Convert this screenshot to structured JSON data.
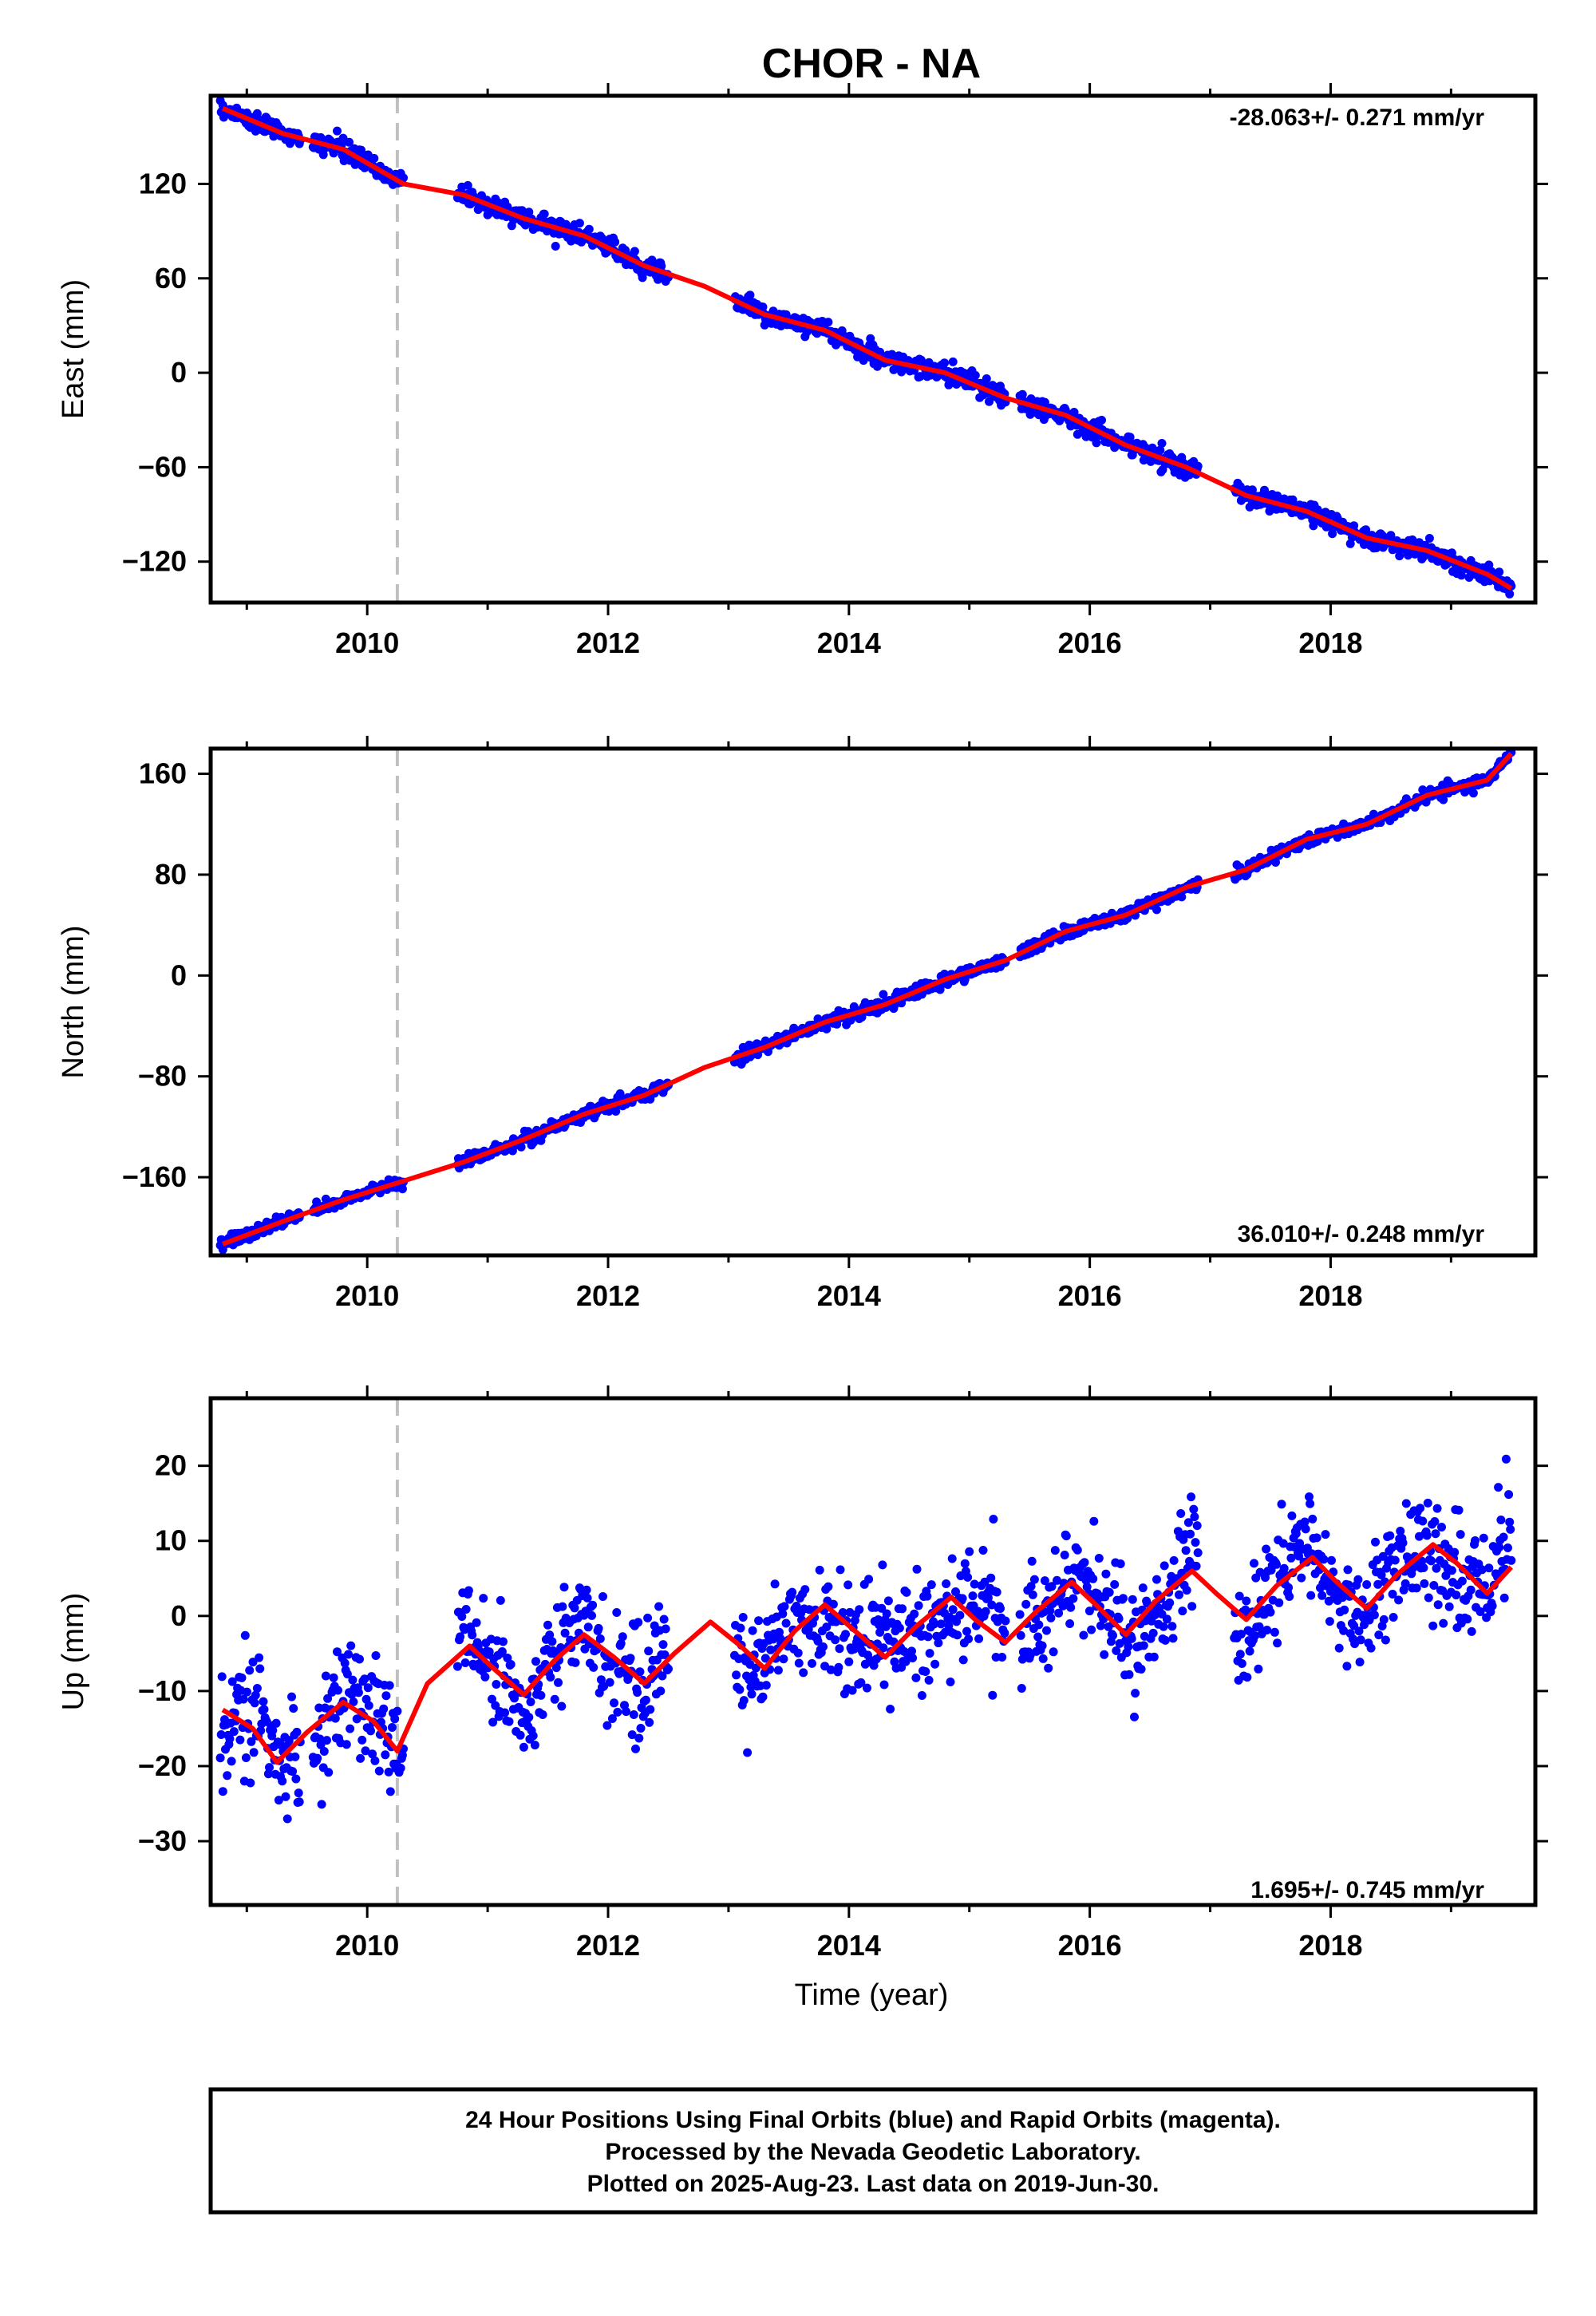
{
  "title": "CHOR - NA",
  "xlabel": "Time (year)",
  "caption": [
    "24 Hour Positions Using Final Orbits (blue) and Rapid Orbits (magenta).",
    "Processed by the Nevada Geodetic Laboratory.",
    "Plotted on 2025-Aug-23. Last data on 2019-Jun-30."
  ],
  "colors": {
    "data": "#0000ff",
    "model": "#ff0000",
    "step": "#c0c0c0",
    "frame": "#000000"
  },
  "chart_data": [
    {
      "type": "scatter",
      "name": "east",
      "ylabel": "East (mm)",
      "rate": "-28.063+/- 0.271 mm/yr",
      "xlim": [
        2008.7,
        2019.7
      ],
      "ylim": [
        -146,
        176
      ],
      "xticks": [
        2010,
        2012,
        2014,
        2016,
        2018
      ],
      "yticks": [
        120,
        60,
        0,
        -60,
        -120
      ],
      "ytick_labels": [
        "120",
        "60",
        "0",
        "−60",
        "−120"
      ],
      "step_epoch": 2010.25,
      "model": [
        [
          2008.8,
          168
        ],
        [
          2009.3,
          152
        ],
        [
          2009.8,
          142
        ],
        [
          2010.3,
          120
        ],
        [
          2010.8,
          113
        ],
        [
          2011.3,
          98
        ],
        [
          2011.8,
          87
        ],
        [
          2012.3,
          68
        ],
        [
          2012.8,
          55
        ],
        [
          2013.3,
          37
        ],
        [
          2013.8,
          27
        ],
        [
          2014.3,
          8
        ],
        [
          2014.8,
          0
        ],
        [
          2015.3,
          -16
        ],
        [
          2015.8,
          -27
        ],
        [
          2016.3,
          -46
        ],
        [
          2016.8,
          -60
        ],
        [
          2017.3,
          -78
        ],
        [
          2017.8,
          -88
        ],
        [
          2018.3,
          -105
        ],
        [
          2018.8,
          -113
        ],
        [
          2019.3,
          -128
        ],
        [
          2019.5,
          -137
        ]
      ],
      "data_segments": [
        [
          2008.78,
          2009.45
        ],
        [
          2009.55,
          2010.3
        ],
        [
          2010.75,
          2012.5
        ],
        [
          2013.05,
          2015.3
        ],
        [
          2015.42,
          2016.9
        ],
        [
          2017.2,
          2019.5
        ]
      ],
      "scatter_sd": 3
    },
    {
      "type": "scatter",
      "name": "north",
      "ylabel": "North (mm)",
      "rate": "36.010+/- 0.248 mm/yr",
      "xlim": [
        2008.7,
        2019.7
      ],
      "ylim": [
        -222,
        180
      ],
      "xticks": [
        2010,
        2012,
        2014,
        2016,
        2018
      ],
      "yticks": [
        160,
        80,
        0,
        -80,
        -160
      ],
      "ytick_labels": [
        "160",
        "80",
        "0",
        "−80",
        "−160"
      ],
      "step_epoch": 2010.25,
      "model": [
        [
          2008.8,
          -213
        ],
        [
          2009.3,
          -195
        ],
        [
          2009.8,
          -178
        ],
        [
          2010.3,
          -163
        ],
        [
          2010.8,
          -148
        ],
        [
          2011.3,
          -130
        ],
        [
          2011.8,
          -110
        ],
        [
          2012.3,
          -95
        ],
        [
          2012.8,
          -73
        ],
        [
          2013.3,
          -57
        ],
        [
          2013.8,
          -37
        ],
        [
          2014.3,
          -23
        ],
        [
          2014.8,
          -3
        ],
        [
          2015.3,
          12
        ],
        [
          2015.8,
          35
        ],
        [
          2016.3,
          48
        ],
        [
          2016.8,
          70
        ],
        [
          2017.3,
          84
        ],
        [
          2017.8,
          108
        ],
        [
          2018.3,
          120
        ],
        [
          2018.8,
          143
        ],
        [
          2019.3,
          155
        ],
        [
          2019.5,
          176
        ]
      ],
      "data_segments": [
        [
          2008.78,
          2009.45
        ],
        [
          2009.55,
          2010.3
        ],
        [
          2010.75,
          2012.5
        ],
        [
          2013.05,
          2015.3
        ],
        [
          2015.42,
          2016.9
        ],
        [
          2017.2,
          2019.5
        ]
      ],
      "scatter_sd": 2.5
    },
    {
      "type": "scatter",
      "name": "up",
      "ylabel": "Up (mm)",
      "rate": "1.695+/- 0.745 mm/yr",
      "xlim": [
        2008.7,
        2019.7
      ],
      "ylim": [
        -38.5,
        29
      ],
      "xticks": [
        2010,
        2012,
        2014,
        2016,
        2018
      ],
      "yticks": [
        20,
        10,
        0,
        -10,
        -20,
        -30
      ],
      "ytick_labels": [
        "20",
        "10",
        "0",
        "−10",
        "−20",
        "−30"
      ],
      "step_epoch": 2010.25,
      "model": [
        [
          2008.8,
          -12.5
        ],
        [
          2009.05,
          -15
        ],
        [
          2009.25,
          -19.5
        ],
        [
          2009.5,
          -15.5
        ],
        [
          2009.8,
          -11.5
        ],
        [
          2010.05,
          -14
        ],
        [
          2010.25,
          -18
        ],
        [
          2010.5,
          -9
        ],
        [
          2010.85,
          -4
        ],
        [
          2011.05,
          -7
        ],
        [
          2011.3,
          -10.5
        ],
        [
          2011.55,
          -6
        ],
        [
          2011.8,
          -2.5
        ],
        [
          2012.05,
          -5.5
        ],
        [
          2012.3,
          -9
        ],
        [
          2012.55,
          -5
        ],
        [
          2012.85,
          -0.8
        ],
        [
          2013.1,
          -4
        ],
        [
          2013.3,
          -7
        ],
        [
          2013.55,
          -2
        ],
        [
          2013.8,
          1.5
        ],
        [
          2014.05,
          -2
        ],
        [
          2014.3,
          -5.5
        ],
        [
          2014.55,
          -1.5
        ],
        [
          2014.85,
          2.5
        ],
        [
          2015.05,
          -0.5
        ],
        [
          2015.3,
          -3.5
        ],
        [
          2015.55,
          0.5
        ],
        [
          2015.85,
          4.5
        ],
        [
          2016.05,
          1.5
        ],
        [
          2016.3,
          -2.5
        ],
        [
          2016.55,
          2
        ],
        [
          2016.85,
          6
        ],
        [
          2017.05,
          3
        ],
        [
          2017.3,
          -0.5
        ],
        [
          2017.55,
          4
        ],
        [
          2017.85,
          7.8
        ],
        [
          2018.05,
          4.5
        ],
        [
          2018.3,
          1
        ],
        [
          2018.55,
          5.5
        ],
        [
          2018.85,
          9.5
        ],
        [
          2019.05,
          7
        ],
        [
          2019.3,
          3
        ],
        [
          2019.5,
          6.5
        ]
      ],
      "data_segments": [
        [
          2008.78,
          2009.45
        ],
        [
          2009.55,
          2010.3
        ],
        [
          2010.75,
          2012.5
        ],
        [
          2013.05,
          2015.3
        ],
        [
          2015.42,
          2016.9
        ],
        [
          2017.2,
          2019.5
        ]
      ],
      "scatter_sd": 3.6
    }
  ]
}
